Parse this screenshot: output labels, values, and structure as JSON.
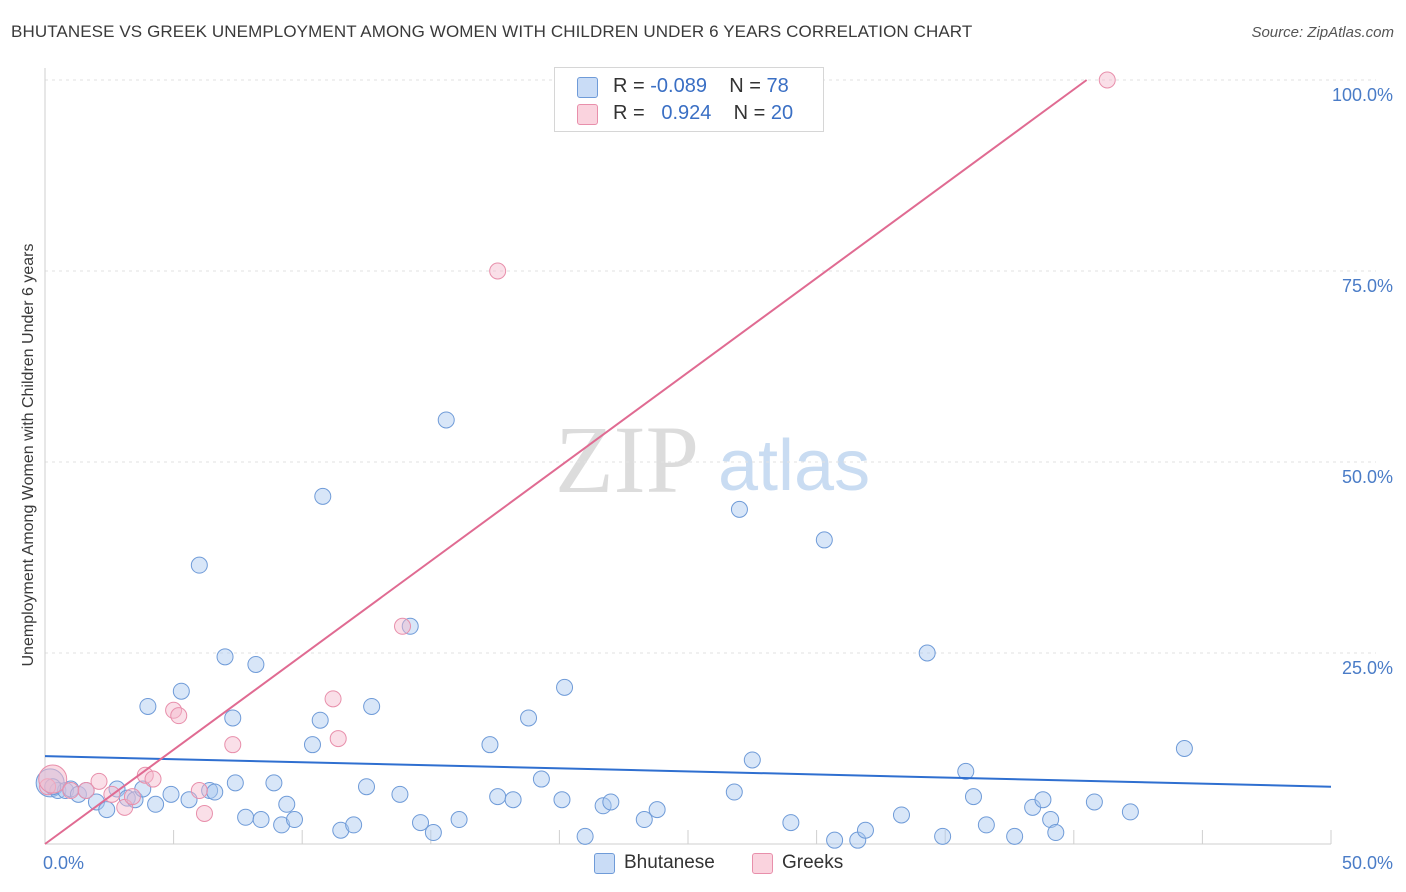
{
  "header": {
    "title": "BHUTANESE VS GREEK UNEMPLOYMENT AMONG WOMEN WITH CHILDREN UNDER 6 YEARS CORRELATION CHART",
    "source": "Source: ZipAtlas.com"
  },
  "watermark": {
    "zip": "ZIP",
    "atlas": "atlas"
  },
  "legend": {
    "rows": [
      {
        "r_label": "R = ",
        "r_value": "-0.089",
        "n_label": "N = ",
        "n_value": "78",
        "color": "#a9c7ef"
      },
      {
        "r_label": "R = ",
        "r_value": "0.924",
        "n_label": "N = ",
        "n_value": "20",
        "color": "#f5b9cb"
      }
    ]
  },
  "bottom_legend": {
    "items": [
      {
        "label": "Bhutanese",
        "color": "#a9c7ef"
      },
      {
        "label": "Greeks",
        "color": "#f5b9cb"
      }
    ]
  },
  "chart_data": {
    "type": "scatter",
    "title": "BHUTANESE VS GREEK UNEMPLOYMENT AMONG WOMEN WITH CHILDREN UNDER 6 YEARS CORRELATION CHART",
    "xlabel": "",
    "ylabel": "Unemployment Among Women with Children Under 6 years",
    "xlim": [
      0,
      50
    ],
    "ylim": [
      0,
      100
    ],
    "x_tick_labels": [
      "0.0%",
      "50.0%"
    ],
    "y_tick_labels": [
      "100.0%",
      "75.0%",
      "50.0%",
      "25.0%"
    ],
    "y_tick_values": [
      100,
      75,
      50,
      25
    ],
    "series": [
      {
        "name": "Bhutanese",
        "color": "#a9c7ef",
        "stroke": "#6f9bd8",
        "line_color": "#2f6fd0",
        "trend": {
          "x0": 0,
          "y0": 11.5,
          "x1": 50,
          "y1": 7.5
        },
        "points": [
          [
            0.2,
            8.0
          ],
          [
            0.5,
            7.0
          ],
          [
            0.8,
            7.0
          ],
          [
            1.0,
            7.2
          ],
          [
            1.3,
            6.5
          ],
          [
            1.6,
            7.0
          ],
          [
            2.0,
            5.5
          ],
          [
            2.4,
            4.5
          ],
          [
            2.8,
            7.2
          ],
          [
            3.2,
            6.0
          ],
          [
            3.5,
            5.8
          ],
          [
            3.8,
            7.2
          ],
          [
            4.0,
            18.0
          ],
          [
            4.3,
            5.2
          ],
          [
            4.9,
            6.5
          ],
          [
            5.3,
            20.0
          ],
          [
            5.6,
            5.8
          ],
          [
            6.0,
            36.5
          ],
          [
            6.4,
            7.0
          ],
          [
            6.6,
            6.8
          ],
          [
            7.0,
            24.5
          ],
          [
            7.3,
            16.5
          ],
          [
            7.4,
            8.0
          ],
          [
            7.8,
            3.5
          ],
          [
            8.2,
            23.5
          ],
          [
            8.4,
            3.2
          ],
          [
            8.9,
            8.0
          ],
          [
            9.2,
            2.5
          ],
          [
            9.4,
            5.2
          ],
          [
            9.7,
            3.2
          ],
          [
            10.4,
            13.0
          ],
          [
            10.7,
            16.2
          ],
          [
            10.8,
            45.5
          ],
          [
            11.5,
            1.8
          ],
          [
            12.0,
            2.5
          ],
          [
            12.5,
            7.5
          ],
          [
            12.7,
            18.0
          ],
          [
            13.8,
            6.5
          ],
          [
            14.2,
            28.5
          ],
          [
            14.6,
            2.8
          ],
          [
            15.1,
            1.5
          ],
          [
            15.6,
            55.5
          ],
          [
            16.1,
            3.2
          ],
          [
            17.3,
            13.0
          ],
          [
            17.6,
            6.2
          ],
          [
            18.2,
            5.8
          ],
          [
            18.8,
            16.5
          ],
          [
            19.3,
            8.5
          ],
          [
            20.1,
            5.8
          ],
          [
            20.2,
            20.5
          ],
          [
            21.0,
            1.0
          ],
          [
            21.7,
            5.0
          ],
          [
            22.0,
            5.5
          ],
          [
            23.3,
            3.2
          ],
          [
            23.8,
            4.5
          ],
          [
            26.8,
            6.8
          ],
          [
            27.0,
            43.8
          ],
          [
            27.5,
            11.0
          ],
          [
            29.0,
            2.8
          ],
          [
            30.3,
            39.8
          ],
          [
            30.7,
            0.5
          ],
          [
            31.6,
            0.5
          ],
          [
            31.9,
            1.8
          ],
          [
            33.3,
            3.8
          ],
          [
            34.3,
            25.0
          ],
          [
            34.9,
            1.0
          ],
          [
            35.8,
            9.5
          ],
          [
            36.1,
            6.2
          ],
          [
            36.6,
            2.5
          ],
          [
            37.7,
            1.0
          ],
          [
            38.4,
            4.8
          ],
          [
            38.8,
            5.8
          ],
          [
            39.1,
            3.2
          ],
          [
            39.3,
            1.5
          ],
          [
            40.8,
            5.5
          ],
          [
            42.2,
            4.2
          ],
          [
            44.3,
            12.5
          ],
          [
            0.3,
            7.5
          ]
        ]
      },
      {
        "name": "Greeks",
        "color": "#f5b9cb",
        "stroke": "#e88fab",
        "line_color": "#e06b92",
        "trend": {
          "x0": 0,
          "y0": 0,
          "x1": 40.5,
          "y1": 100
        },
        "points": [
          [
            0.1,
            7.5
          ],
          [
            0.3,
            8.5
          ],
          [
            1.0,
            7.0
          ],
          [
            1.6,
            7.0
          ],
          [
            2.1,
            8.2
          ],
          [
            2.6,
            6.5
          ],
          [
            3.1,
            4.8
          ],
          [
            3.4,
            6.2
          ],
          [
            3.9,
            9.0
          ],
          [
            4.2,
            8.5
          ],
          [
            5.0,
            17.5
          ],
          [
            5.2,
            16.8
          ],
          [
            6.0,
            7.0
          ],
          [
            6.2,
            4.0
          ],
          [
            7.3,
            13.0
          ],
          [
            11.2,
            19.0
          ],
          [
            11.4,
            13.8
          ],
          [
            13.9,
            28.5
          ],
          [
            17.6,
            75.0
          ],
          [
            41.3,
            100.0
          ]
        ]
      }
    ]
  }
}
